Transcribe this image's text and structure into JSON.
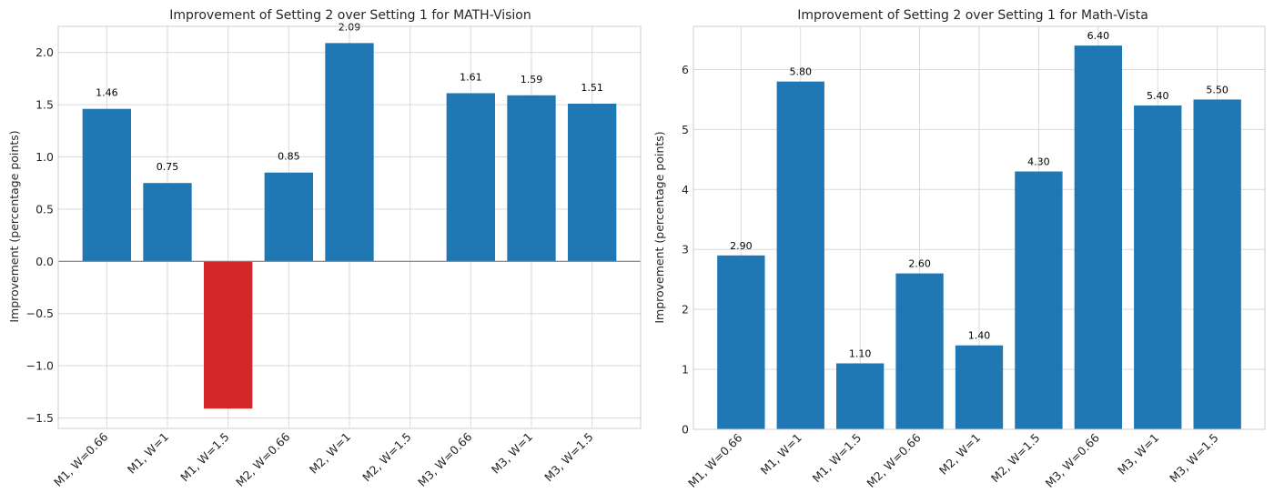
{
  "chart_data": [
    {
      "type": "bar",
      "title": "Improvement of Setting 2 over Setting 1 for MATH-Vision",
      "xlabel": "",
      "ylabel": "Improvement (percentage points)",
      "categories": [
        "M1, W=0.66",
        "M1, W=1",
        "M1, W=1.5",
        "M2, W=0.66",
        "M2, W=1",
        "M2, W=1.5",
        "M3, W=0.66",
        "M3, W=1",
        "M3, W=1.5"
      ],
      "values": [
        1.46,
        0.75,
        -1.41,
        0.85,
        2.09,
        0,
        1.61,
        1.59,
        1.51
      ],
      "data_labels": [
        "1.46",
        "0.75",
        "",
        "0.85",
        "2.09",
        "",
        "1.61",
        "1.59",
        "1.51"
      ],
      "ylim": [
        -1.6,
        2.25
      ],
      "yticks": [
        -1.5,
        -1.0,
        -0.5,
        0.0,
        0.5,
        1.0,
        1.5,
        2.0
      ],
      "ytick_labels": [
        "−1.5",
        "−1.0",
        "−0.5",
        "0.0",
        "0.5",
        "1.0",
        "1.5",
        "2.0"
      ],
      "grid": true,
      "colors": {
        "positive": "#1f77b4",
        "negative": "#d62728",
        "zero_line": "#808080"
      }
    },
    {
      "type": "bar",
      "title": "Improvement of Setting 2 over Setting 1 for Math-Vista",
      "xlabel": "",
      "ylabel": "Improvement (percentage points)",
      "categories": [
        "M1, W=0.66",
        "M1, W=1",
        "M1, W=1.5",
        "M2, W=0.66",
        "M2, W=1",
        "M2, W=1.5",
        "M3, W=0.66",
        "M3, W=1",
        "M3, W=1.5"
      ],
      "values": [
        2.9,
        5.8,
        1.1,
        2.6,
        1.4,
        4.3,
        6.4,
        5.4,
        5.5
      ],
      "data_labels": [
        "2.90",
        "5.80",
        "1.10",
        "2.60",
        "1.40",
        "4.30",
        "6.40",
        "5.40",
        "5.50"
      ],
      "ylim": [
        0,
        6.72
      ],
      "yticks": [
        0,
        1,
        2,
        3,
        4,
        5,
        6
      ],
      "ytick_labels": [
        "0",
        "1",
        "2",
        "3",
        "4",
        "5",
        "6"
      ],
      "grid": true,
      "colors": {
        "positive": "#1f77b4",
        "negative": "#d62728",
        "zero_line": "#808080"
      }
    }
  ]
}
